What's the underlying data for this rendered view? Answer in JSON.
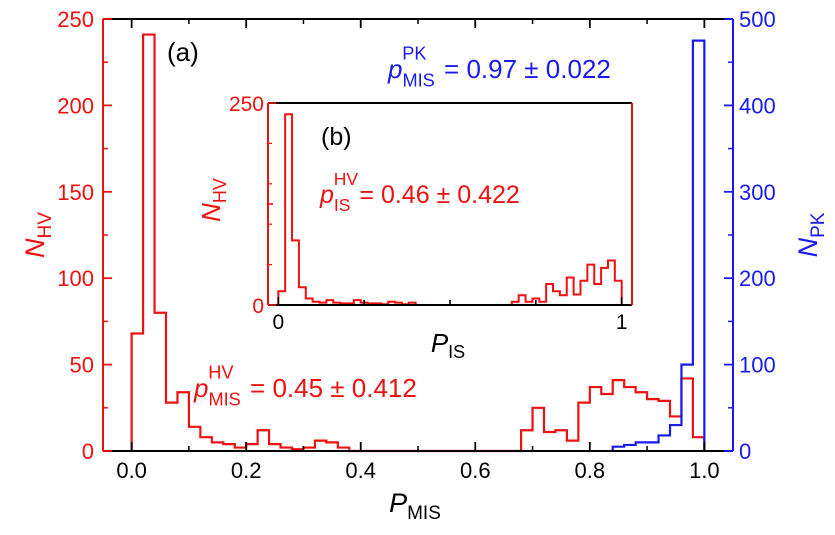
{
  "chart_data": [
    {
      "type": "histogram",
      "panel_label": "(a)",
      "xlabel": "P",
      "xlabel_sub": "MIS",
      "ylabel_left": "N",
      "ylabel_left_sub": "HV",
      "ylabel_right": "N",
      "ylabel_right_sub": "PK",
      "xlim": [
        -0.05,
        1.05
      ],
      "ylim_left": [
        0,
        250
      ],
      "ylim_right": [
        0,
        500
      ],
      "x_ticks": [
        "0.0",
        "0.2",
        "0.4",
        "0.6",
        "0.8",
        "1.0"
      ],
      "y_ticks_left": [
        "0",
        "50",
        "100",
        "150",
        "200",
        "250"
      ],
      "y_ticks_right": [
        "0",
        "100",
        "200",
        "300",
        "400",
        "500"
      ],
      "colors": {
        "hv": "#ee1111",
        "pk": "#1a1aee",
        "axis": "#000000"
      },
      "bin_width": 0.02,
      "series": [
        {
          "key": "hv",
          "axis": "left",
          "x": [
            0.0,
            0.02,
            0.04,
            0.06,
            0.08,
            0.1,
            0.12,
            0.14,
            0.16,
            0.18,
            0.2,
            0.22,
            0.24,
            0.26,
            0.28,
            0.3,
            0.32,
            0.34,
            0.36,
            0.38,
            0.4,
            0.42,
            0.44,
            0.46,
            0.48,
            0.5,
            0.52,
            0.54,
            0.56,
            0.58,
            0.6,
            0.62,
            0.64,
            0.66,
            0.68,
            0.7,
            0.72,
            0.74,
            0.76,
            0.78,
            0.8,
            0.82,
            0.84,
            0.86,
            0.88,
            0.9,
            0.92,
            0.94,
            0.96,
            0.98
          ],
          "values": [
            68,
            241,
            80,
            28,
            34,
            14,
            8,
            5,
            4,
            2,
            4,
            12,
            4,
            2,
            1,
            2,
            6,
            5,
            2,
            0,
            0,
            0,
            0,
            0,
            0,
            0,
            0,
            0,
            0,
            0,
            0,
            0,
            0,
            0,
            12,
            25,
            11,
            12,
            6,
            28,
            37,
            33,
            41,
            37,
            34,
            30,
            29,
            20,
            42,
            8
          ]
        },
        {
          "key": "pk",
          "axis": "right",
          "x": [
            0.84,
            0.86,
            0.88,
            0.9,
            0.92,
            0.94,
            0.96,
            0.98
          ],
          "values": [
            5,
            7,
            10,
            10,
            18,
            30,
            100,
            475
          ]
        }
      ],
      "annotations": [
        {
          "key": "hv",
          "base": "p",
          "sub": "MIS",
          "sup": "HV",
          "text": "= 0.45 ± 0.412"
        },
        {
          "key": "pk",
          "base": "p",
          "sub": "MIS",
          "sup": "PK",
          "text": "= 0.97 ± 0.022"
        }
      ]
    },
    {
      "type": "histogram",
      "panel_label": "(b)",
      "xlabel": "P",
      "xlabel_sub": "IS",
      "ylabel": "N",
      "ylabel_sub": "HV",
      "xlim": [
        -0.03,
        1.03
      ],
      "ylim": [
        0,
        250
      ],
      "x_ticks": [
        "0",
        "1"
      ],
      "y_ticks": [
        "0",
        "250"
      ],
      "bin_width": 0.02,
      "series": [
        {
          "key": "hv",
          "x": [
            0.0,
            0.02,
            0.04,
            0.06,
            0.08,
            0.1,
            0.12,
            0.14,
            0.16,
            0.18,
            0.2,
            0.22,
            0.24,
            0.26,
            0.28,
            0.3,
            0.32,
            0.34,
            0.36,
            0.38,
            0.4,
            0.42,
            0.44,
            0.46,
            0.48,
            0.5,
            0.52,
            0.54,
            0.56,
            0.58,
            0.6,
            0.62,
            0.64,
            0.66,
            0.68,
            0.7,
            0.72,
            0.74,
            0.76,
            0.78,
            0.8,
            0.82,
            0.84,
            0.86,
            0.88,
            0.9,
            0.92,
            0.94,
            0.96,
            0.98
          ],
          "values": [
            17,
            236,
            80,
            22,
            8,
            4,
            3,
            6,
            3,
            2,
            2,
            6,
            3,
            2,
            2,
            1,
            4,
            3,
            1,
            3,
            0,
            0,
            0,
            0,
            0,
            0,
            0,
            0,
            0,
            0,
            0,
            0,
            0,
            0,
            4,
            12,
            4,
            8,
            4,
            26,
            17,
            12,
            34,
            13,
            30,
            50,
            26,
            46,
            55,
            30
          ]
        }
      ],
      "annotations": [
        {
          "key": "hv",
          "base": "p",
          "sub": "IS",
          "sup": "HV",
          "text": "= 0.46 ± 0.422"
        }
      ]
    }
  ]
}
